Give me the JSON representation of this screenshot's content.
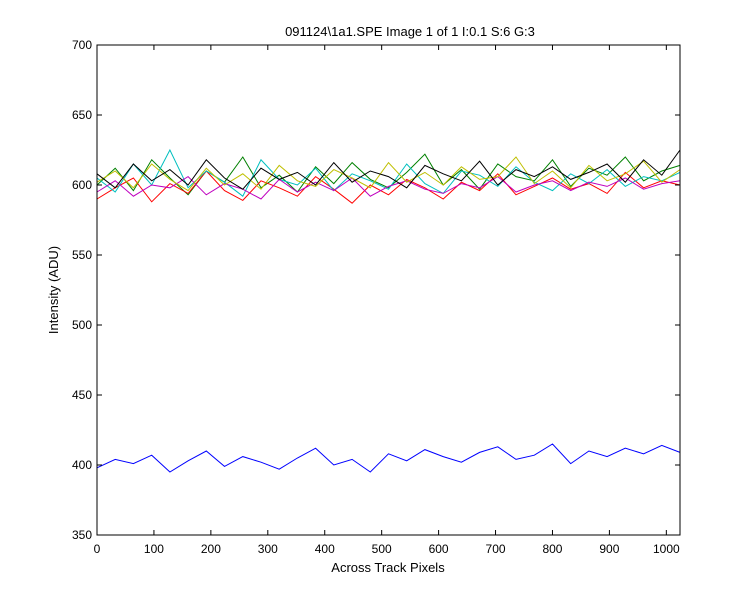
{
  "chart_data": {
    "type": "line",
    "title": "091124\\1a1.SPE  Image 1 of 1  I:0.1  S:6  G:3",
    "x_label": "Across Track Pixels",
    "y_label": "Intensity (ADU)",
    "xlim": [
      0,
      1024
    ],
    "ylim": [
      350,
      700
    ],
    "xticks": [
      0,
      100,
      200,
      300,
      400,
      500,
      600,
      700,
      800,
      900,
      1000
    ],
    "yticks": [
      350,
      400,
      450,
      500,
      550,
      600,
      650,
      700
    ],
    "x": [
      0,
      32,
      64,
      96,
      128,
      160,
      192,
      224,
      256,
      288,
      320,
      352,
      384,
      416,
      448,
      480,
      512,
      544,
      576,
      608,
      640,
      672,
      704,
      736,
      768,
      800,
      832,
      864,
      896,
      928,
      960,
      992,
      1024
    ],
    "series": [
      {
        "color": "#0000ff",
        "values": [
          398,
          404,
          401,
          407,
          395,
          403,
          410,
          399,
          406,
          402,
          397,
          405,
          412,
          400,
          404,
          395,
          408,
          403,
          411,
          406,
          402,
          409,
          413,
          404,
          407,
          415,
          401,
          410,
          406,
          412,
          408,
          414,
          409
        ]
      },
      {
        "color": "#008000",
        "values": [
          600,
          612,
          596,
          618,
          605,
          593,
          610,
          602,
          620,
          598,
          607,
          595,
          613,
          601,
          616,
          604,
          598,
          609,
          622,
          600,
          611,
          597,
          615,
          606,
          603,
          618,
          599,
          612,
          607,
          620,
          603,
          610,
          614
        ]
      },
      {
        "color": "#ff0000",
        "values": [
          590,
          598,
          605,
          588,
          601,
          594,
          610,
          596,
          589,
          603,
          598,
          592,
          606,
          597,
          587,
          600,
          593,
          604,
          598,
          590,
          602,
          596,
          608,
          593,
          599,
          605,
          597,
          601,
          594,
          609,
          598,
          603,
          600
        ]
      },
      {
        "color": "#00bfbf",
        "values": [
          605,
          595,
          615,
          600,
          625,
          598,
          610,
          602,
          592,
          618,
          604,
          600,
          612,
          596,
          608,
          603,
          597,
          615,
          601,
          594,
          610,
          607,
          599,
          613,
          602,
          596,
          608,
          601,
          611,
          599,
          606,
          603,
          609
        ]
      },
      {
        "color": "#bf00bf",
        "values": [
          595,
          603,
          592,
          600,
          598,
          606,
          593,
          601,
          597,
          590,
          604,
          595,
          602,
          596,
          605,
          592,
          599,
          603,
          597,
          594,
          601,
          598,
          606,
          595,
          600,
          603,
          596,
          602,
          599,
          605,
          597,
          601,
          603
        ]
      },
      {
        "color": "#bfbf00",
        "values": [
          602,
          610,
          598,
          615,
          604,
          596,
          612,
          600,
          608,
          597,
          614,
          603,
          599,
          611,
          605,
          598,
          616,
          602,
          609,
          600,
          613,
          604,
          606,
          620,
          601,
          610,
          598,
          614,
          603,
          608,
          617,
          602,
          611
        ]
      },
      {
        "color": "#000000",
        "values": [
          608,
          598,
          615,
          603,
          611,
          600,
          618,
          605,
          597,
          612,
          604,
          609,
          600,
          616,
          602,
          610,
          606,
          598,
          614,
          608,
          603,
          617,
          600,
          611,
          606,
          613,
          604,
          609,
          615,
          602,
          618,
          607,
          625
        ]
      }
    ]
  }
}
